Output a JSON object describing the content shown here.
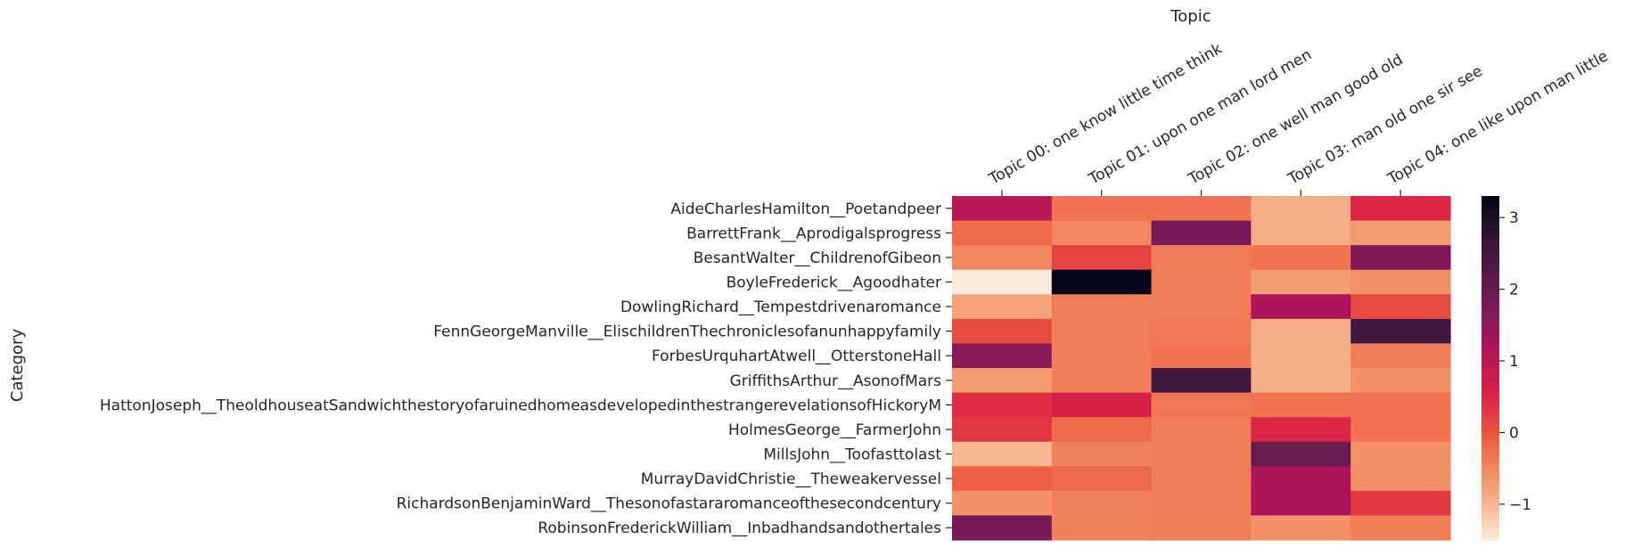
{
  "chart_data": {
    "type": "heatmap",
    "title": "",
    "xlabel": "Topic",
    "ylabel": "Category",
    "x_axis_position": "top",
    "columns": [
      "Topic 00: one know little time think",
      "Topic 01: upon one man lord men",
      "Topic 02: one well man good old",
      "Topic 03: man old one sir see",
      "Topic 04: one like upon man little"
    ],
    "rows": [
      "AideCharlesHamilton__Poetandpeer",
      "BarrettFrank__Aprodigalsprogress",
      "BesantWalter__ChildrenofGibeon",
      "BoyleFrederick__Agoodhater",
      "DowlingRichard__Tempestdrivenaromance",
      "FennGeorgeManville__ElischildrenThechroniclesofanunhappyfamily",
      "ForbesUrquhartAtwell__OtterstoneHall",
      "GriffithsArthur__AsonofMars",
      "HattonJoseph__TheoldhouseatSandwichthestoryofaruinedhomeasdevelopedinthestrangerevelationsofHickoryM",
      "HolmesGeorge__FarmerJohn",
      "MillsJohn__Toofasttolast",
      "MurrayDavidChristie__Theweakervessel",
      "RichardsonBenjaminWard__Thesonofastararomanceofthesecondcentury",
      "RobinsonFrederickWilliam__Inbadhandsandothertales"
    ],
    "values": [
      [
        1.0,
        -0.3,
        -0.3,
        -0.9,
        0.5
      ],
      [
        -0.2,
        -0.5,
        1.8,
        -0.9,
        -0.7
      ],
      [
        -0.5,
        0.2,
        -0.4,
        -0.3,
        1.7
      ],
      [
        -1.5,
        3.3,
        -0.4,
        -0.7,
        -0.6
      ],
      [
        -0.8,
        -0.4,
        -0.4,
        1.2,
        0.1
      ],
      [
        0.1,
        -0.4,
        -0.35,
        -0.9,
        2.5
      ],
      [
        1.6,
        -0.4,
        -0.3,
        -0.9,
        -0.4
      ],
      [
        -0.7,
        -0.4,
        2.5,
        -0.9,
        -0.6
      ],
      [
        0.4,
        0.6,
        -0.35,
        -0.3,
        -0.3
      ],
      [
        0.3,
        -0.2,
        -0.4,
        0.5,
        -0.3
      ],
      [
        -1.0,
        -0.45,
        -0.4,
        2.0,
        -0.6
      ],
      [
        -0.1,
        -0.2,
        -0.4,
        1.2,
        -0.6
      ],
      [
        -0.6,
        -0.45,
        -0.4,
        1.2,
        0.3
      ],
      [
        1.8,
        -0.45,
        -0.4,
        -0.6,
        -0.4
      ]
    ],
    "colorbar": {
      "range": [
        -1.5,
        3.3
      ],
      "ticks": [
        -1,
        0,
        1,
        2,
        3
      ],
      "tick_labels": [
        "−1",
        "0",
        "1",
        "2",
        "3"
      ],
      "colormap": "rocket_r"
    },
    "legend": "colorbar at right"
  }
}
